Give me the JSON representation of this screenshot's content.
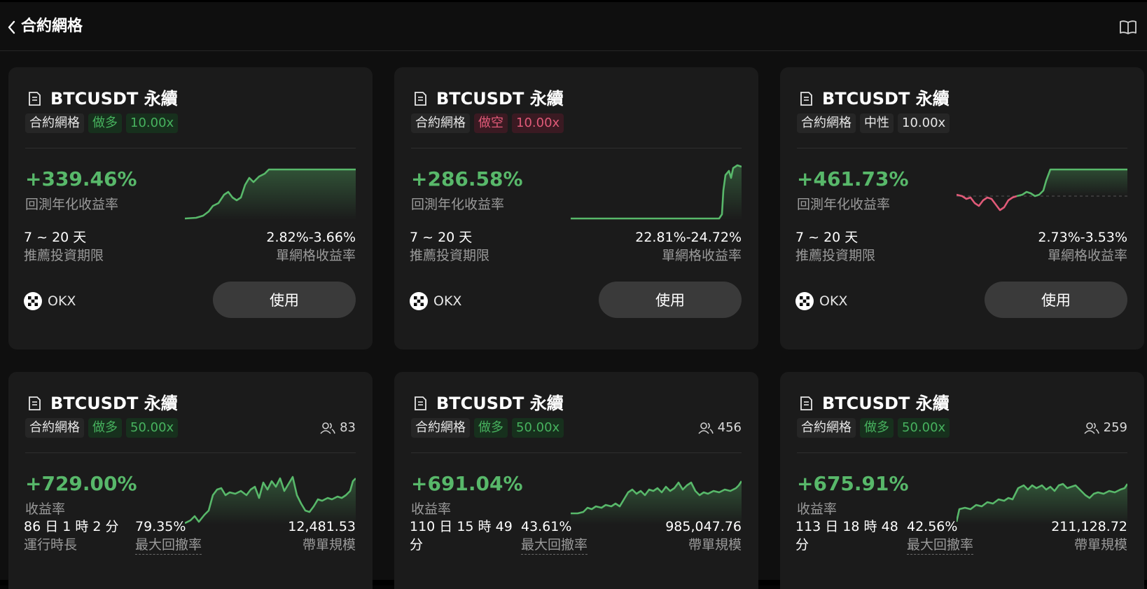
{
  "header": {
    "title": "合約網格"
  },
  "labels": {
    "use_button": "使用",
    "exchange": "OKX",
    "backtest_annual": "回測年化收益率",
    "recommend_period": "推薦投資期限",
    "per_grid_yield": "單網格收益率",
    "yield": "收益率",
    "runtime": "運行時長",
    "max_drawdown": "最大回撤率",
    "copy_size": "帶單規模"
  },
  "cards_top": [
    {
      "symbol": "BTCUSDT 永續",
      "type": "合約網格",
      "direction": "做多",
      "direction_kind": "long",
      "leverage": "10.00x",
      "return": "+339.46%",
      "period": "7 ~ 20 天",
      "grid_yield": "2.82%-3.66%"
    },
    {
      "symbol": "BTCUSDT 永續",
      "type": "合約網格",
      "direction": "做空",
      "direction_kind": "short",
      "leverage": "10.00x",
      "return": "+286.58%",
      "period": "7 ~ 20 天",
      "grid_yield": "22.81%-24.72%"
    },
    {
      "symbol": "BTCUSDT 永續",
      "type": "合約網格",
      "direction": "中性",
      "direction_kind": "neutral",
      "leverage": "10.00x",
      "return": "+461.73%",
      "period": "7 ~ 20 天",
      "grid_yield": "2.73%-3.53%"
    }
  ],
  "cards_bottom": [
    {
      "symbol": "BTCUSDT 永續",
      "type": "合約網格",
      "direction": "做多",
      "leverage": "50.00x",
      "users": "83",
      "return": "+729.00%",
      "runtime": "86 日 1 時 2 分",
      "runtime_2": "",
      "drawdown": "79.35%",
      "size": "12,481.53"
    },
    {
      "symbol": "BTCUSDT 永續",
      "type": "合約網格",
      "direction": "做多",
      "leverage": "50.00x",
      "users": "456",
      "return": "+691.04%",
      "runtime": "110 日 15 時 49",
      "runtime_2": "分",
      "drawdown": "43.61%",
      "size": "985,047.76"
    },
    {
      "symbol": "BTCUSDT 永續",
      "type": "合約網格",
      "direction": "做多",
      "leverage": "50.00x",
      "users": "259",
      "return": "+675.91%",
      "runtime": "113 日 18 時 48",
      "runtime_2": "分",
      "drawdown": "42.56%",
      "size": "211,128.72"
    }
  ],
  "colors": {
    "up": "#58b86a",
    "down": "#e05a78",
    "card_bg": "#1b1b1b",
    "button_bg": "#3a3a3a"
  },
  "icons": {
    "back": "chevron-left-icon",
    "guide": "book-icon",
    "strategy": "document-icon",
    "users": "users-icon",
    "exchange": "okx-logo-icon"
  }
}
